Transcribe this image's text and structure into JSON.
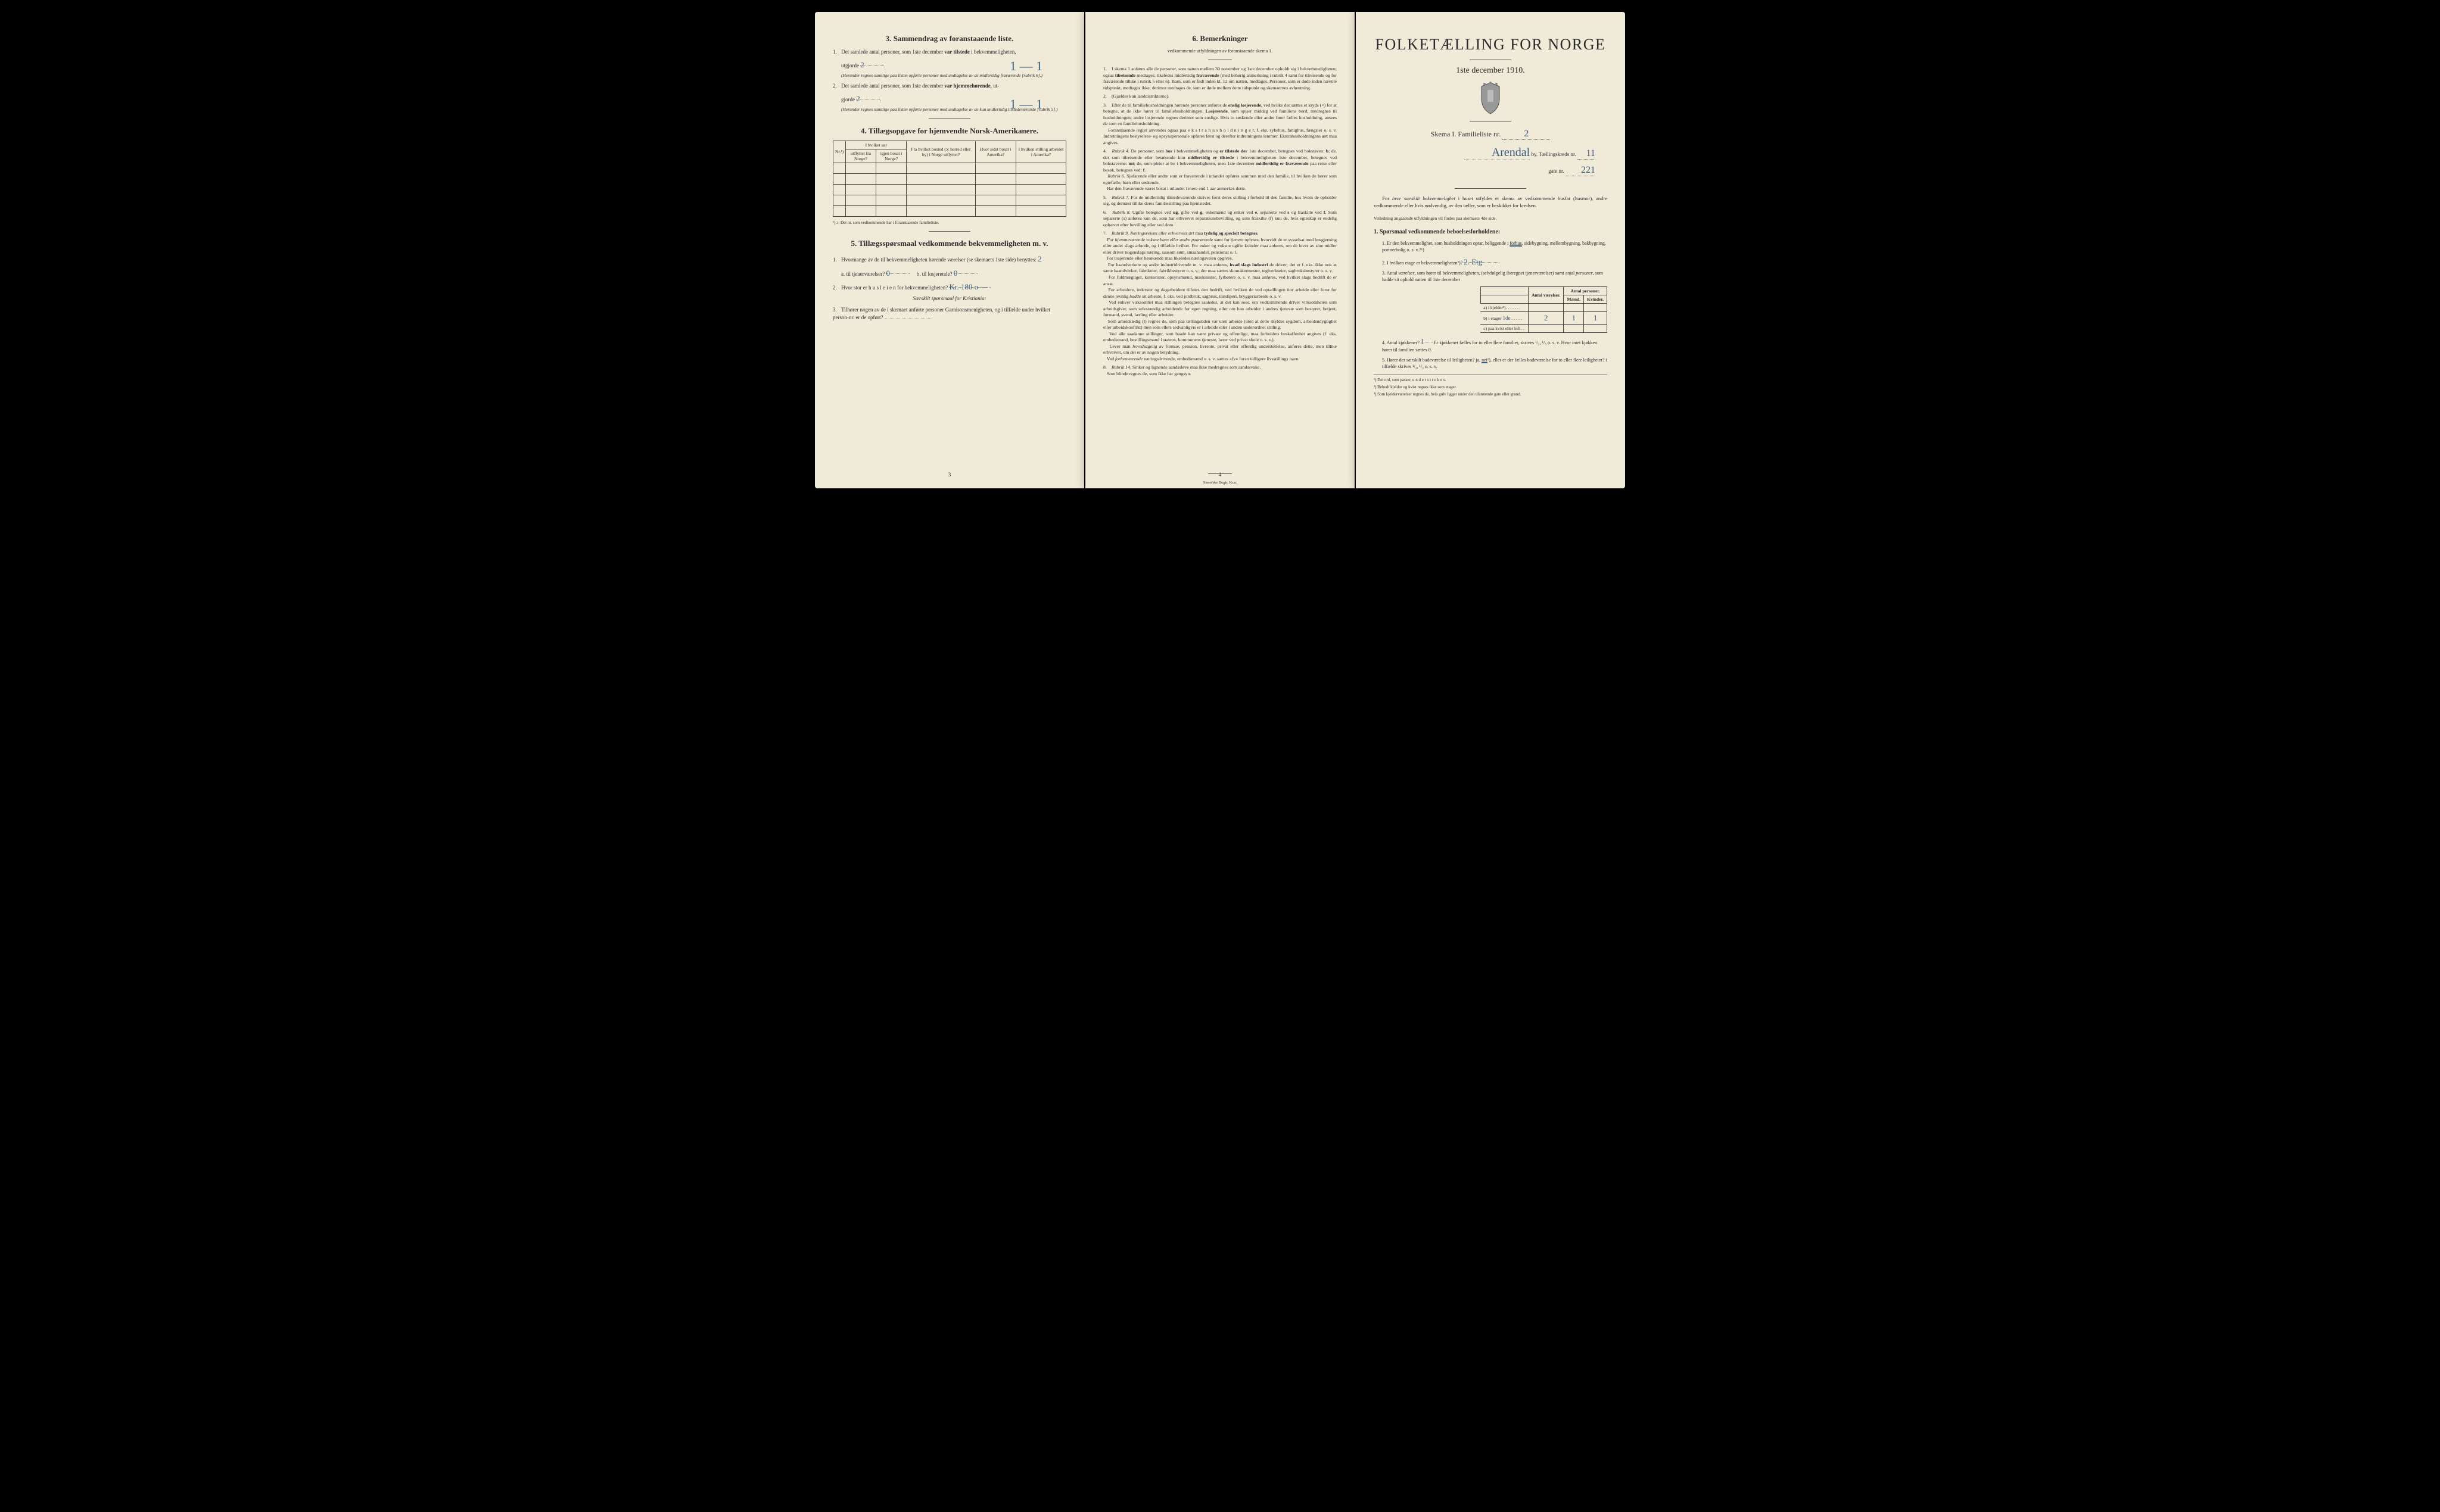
{
  "page_left": {
    "s3": {
      "title": "3.   Sammendrag av foranstaaende liste.",
      "q1_a": "Det samlede antal personer, som 1ste december",
      "q1_b": "var tilstede",
      "q1_c": "i bekvemmeligheten,",
      "q1_utgjorde": "utgjorde",
      "q1_val": "2",
      "q1_paren": "(Herunder regnes samtlige paa listen opførte personer med undtagelse av de midlertidig fraværende [rubrik 6].)",
      "q2_a": "Det samlede antal personer, som 1ste december",
      "q2_b": "var hjemmehørende",
      "q2_c": ", ut-",
      "q2_gjorde": "gjorde",
      "q2_val": "2",
      "q2_paren": "(Herunder regnes samtlige paa listen opførte personer med undtagelse av de kun midlertidig tilstedeværende [rubrik 5].)",
      "mark1": "1 — 1",
      "mark2": "1 — 1"
    },
    "s4": {
      "title": "4.   Tillægsopgave for hjemvendte Norsk-Amerikanere.",
      "headers": {
        "nr": "Nr.¹)",
        "aar": "I hvilket aar",
        "ut": "utflyttet fra Norge?",
        "igjen": "igjen bosat i Norge?",
        "fra": "Fra hvilket bosted (ɔ: herred eller by) i Norge utflyttet?",
        "hvor": "Hvor sidst bosat i Amerika?",
        "stilling": "I hvilken stilling arbeidet i Amerika?"
      },
      "fn": "¹) ɔ: Det nr. som vedkommende har i foranstaaende familieliste."
    },
    "s5": {
      "title": "5.   Tillægsspørsmaal vedkommende bekvemmeligheten m. v.",
      "q1": "Hvormange av de til bekvemmeligheten hørende værelser (se skemaets 1ste side) benyttes:",
      "q1_val": "2",
      "q1a": "a. til tjenerværelser?",
      "q1a_val": "0",
      "q1b": "b. til losjerende?",
      "q1b_val": "0",
      "q2": "Hvor stor er h u s l e i e n for bekvemmeligheten?",
      "q2_val": "Kr. 180 o —",
      "q2_sub": "Særskilt spørsmaal for Kristiania:",
      "q3": "Tilhører nogen av de i skemaet anførte personer Garnisonsmenigheten, og i tilfælde under hvilket person-nr. er de opført?"
    },
    "pagenum": "3"
  },
  "page_mid": {
    "title": "6.   Bemerkninger",
    "sub": "vedkommende utfyldningen av foranstaaende skema 1.",
    "items": [
      "I skema 1 anføres alle de personer, som natten mellem 30 november og 1ste december opholdt sig i bekvemmeligheten; ogsaa <strong>tilreisende</strong> medtages; likeledes midlertidig <strong>fraværende</strong> (med behørig anmerkning i rubrik 4 samt for tilreisende og for fraværende tillike i rubrik 5 eller 6). Barn, som er født inden kl. 12 om natten, medtages. Personer, som er døde inden nævnte tidspunkt, medtages ikke; derimot medtages de, som er døde mellem dette tidspunkt og skemaernes avhentning.",
      "(Gjælder kun landdistrikterne).",
      "Efter de til familiehusholdningen hørende personer anføres de <strong>enslig losjerende</strong>, ved hvilke der sættes et kryds (×) for at betegne, at de ikke hører til familiehusholdningen. <strong>Losjerende</strong>, som spiser middag ved familiens bord, medregnes til husholdningen; andre losjerende regnes derimot som enslige. Hvis to søskende eller andre fører fælles husholdning, ansees de som en familiehusholdning.<br>&nbsp;&nbsp;&nbsp;Foranstaaende regler anvendes ogsaa paa e k s t r a h u s h o l d n i n g e r, f. eks. sykehus, fattighus, fængsler o. s. v. Indretningens bestyrelses- og opsynspersonale opføres først og derefter indretningens lemmer. Ekstrahusholdningens <strong>art</strong> maa angives.",
      "<em>Rubrik 4.</em> De personer, som <strong>bor</strong> i bekvemmeligheten og <strong>er tilstede der</strong> 1ste december, betegnes ved bokstaven: <strong>b</strong>; de, der som tilreisende eller besøkende kun <strong>midlertidig er tilstede</strong> i bekvemmeligheten 1ste december, betegnes ved bokstaverne: <strong>mt</strong>; de, som pleier at bo i bekvemmeligheten, men 1ste december <strong>midlertidig er fraværende</strong> paa reise eller besøk, betegnes ved: <strong>f</strong>.<br>&nbsp;&nbsp;&nbsp;<em>Rubrik 6.</em> Sjøfarende eller andre som er fraværende i utlandet opføres sammen med den familie, til hvilken de hører som egtefælle, barn eller søskende.<br>&nbsp;&nbsp;&nbsp;Har den fraværende været bosat i utlandet i mere end 1 aar anmerkes dette.",
      "<em>Rubrik 7.</em> For de midlertidig tilstedeværende skrives først deres stilling i forhold til den familie, hos hvem de opholder sig, og dernæst tillike deres familiestilling paa hjemstedet.",
      "<em>Rubrik 8.</em> Ugifte betegnes ved <strong>ug</strong>, gifte ved <strong>g</strong>, enkemænd og enker ved <strong>e</strong>, separerte ved <strong>s</strong> og fraskilte ved <strong>f</strong>. Som separerte (s) anføres kun de, som har erhvervet separationsbevilling, og som fraskilte (f) kun de, hvis egteskap er endelig ophævet efter bevilling eller ved dom.",
      "<em>Rubrik 9. Næringsveiens eller erhvervets art</em> maa <strong>tydelig og specielt betegnes</strong>.<br>&nbsp;&nbsp;&nbsp;<em>For hjemmeværende voksne barn eller andre paarørende</em> samt for <em>tjenere</em> oplyses, hvorvidt de er sysselsat med husgjerning eller andet slags arbeide, og i tilfælde hvilket. For enker og voksne ugifte kvinder maa anføres, om de lever av sine midler eller driver nogenslags næring, saasom søm, smaahandel, pensionat o. l.<br>&nbsp;&nbsp;&nbsp;For losjerende eller besøkende maa likeledes næringsveien opgives.<br>&nbsp;&nbsp;&nbsp;For haandverkere og andre industridrivende m. v. maa anføres, <strong>hvad slags industri</strong> de driver; det er f. eks. ikke nok at sætte haandverker, fabrikeier, fabrikbestyrer o. s. v.; der maa sættes skomakermester, teglverkseier, sagbruksbestyrer o. s. v.<br>&nbsp;&nbsp;&nbsp;For fuldmægtiger, kontorister, opsynsmænd, maskinister, fyrbøtere o. s. v. maa anføres, ved hvilket slags bedrift de er ansat.<br>&nbsp;&nbsp;&nbsp;For arbeidere, inderster og dagarbeidere tilføies den bedrift, ved hvilken de ved optællingen <em>har</em> arbeide eller forut for denne jevnlig <em>hadde</em> sit arbeide, f. eks. ved jordbruk, sagbruk, træsliperi, bryggeriarbeide o. s. v.<br>&nbsp;&nbsp;&nbsp;Ved enhver virksomhet maa stillingen betegnes saaledes, at det kan sees, om vedkommende driver virksomheten som arbeidsgiver, som selvstændig arbeidende for egen regning, eller om han arbeider i andres tjeneste som bestyrer, betjent, formand, svend, lærling eller arbeider.<br>&nbsp;&nbsp;&nbsp;Som arbeidsledig (l) regnes de, som paa tællingstiden var uten arbeide (uten at dette skyldes sygdom, arbeidsudygtighet eller arbeidskonflikt) men som ellers sedvanligvis er i arbeide eller i anden underordnet stilling.<br>&nbsp;&nbsp;&nbsp;Ved alle saadanne stillinger, som baade kan være private og offentlige, maa forholdets beskaffenhet angives (f. eks. embedsmand, bestillingsmand i statens, kommunens tjeneste, lærer ved privat skole o. s. v.).<br>&nbsp;&nbsp;&nbsp;Lever man <em>hovedsagelig</em> av formue, pension, livrente, privat eller offentlig understøttelse, anføres dette, men tillike erhvervet, om det er av nogen betydning.<br>&nbsp;&nbsp;&nbsp;Ved <em>forhenværende</em> næringsdrivende, embedsmænd o. s. v. sættes «fv» foran tidligere livsstillings navn.",
      "<em>Rubrik 14.</em> Sinker og lignende aandssløve maa ikke medregnes som aandssvake.<br>&nbsp;&nbsp;&nbsp;Som blinde regnes de, som ikke har gangsyn."
    ],
    "pagenum": "4",
    "printer": "Steen'ske Bogtr.   Kr.a."
  },
  "page_right": {
    "title": "FOLKETÆLLING FOR NORGE",
    "date": "1ste december 1910.",
    "schema_a": "Skema I.   Familieliste nr.",
    "schema_val": "2",
    "by_val": "Arendal",
    "by_label": "by.  Tællingskreds nr.",
    "kreds_val": "11",
    "gate": "gate nr.",
    "gate_val": "221",
    "intro_a": "For",
    "intro_b": "hver særskilt bekvemmelighet",
    "intro_c": "i huset utfyldes et skema av vedkommende husfar (husmor), andre vedkommende eller hvis nødvendig, av den tæller, som er beskikket for kredsen.",
    "intro_sub": "Veiledning angaaende utfyldningen vil findes paa skemaets 4de side.",
    "s1": {
      "title": "1.  Spørsmaal vedkommende beboelsesforholdene:",
      "q1": "Er den bekvemmelighet, som husholdningen optar, beliggende i forhus, sidebygning, mellembygning, bakbygning, portnerbolig o. s. v.?¹)",
      "q2": "I hvilken etage er bekvemmeligheten²)?",
      "q2_val": "2. Etg",
      "q3": "Antal <em>værelser</em>, som hører til bekvemmeligheten, (selvfølgelig iberegnet tjenerværelser) samt antal <em>personer</em>, som hadde sit ophold natten til 1ste december",
      "table": {
        "h_vaer": "Antal værelser.",
        "h_pers": "Antal personer.",
        "h_m": "Mænd.",
        "h_k": "Kvinder.",
        "r_a": "a) i kjelder³)",
        "r_b": "b) i etager",
        "r_b_etg": "1de",
        "r_b_v": "2",
        "r_b_m": "1",
        "r_b_k": "1",
        "r_c": "c) paa kvist eller loft"
      },
      "q4": "Antal kjøkkener?",
      "q4_val": "1",
      "q4_rest": "Er kjøkkenet fælles for to eller flere familier, skrives ¹/₂, ¹/₃ o. s. v.   Hvor intet kjøkken hører til familien sættes 0.",
      "q5_a": "Hører der særskilt badeværelse til leiligheten?  ja,",
      "q5_nei": "nei",
      "q5_b": "¹), eller er der fælles badeværelse for to eller flere leiligheter?  i tilfælde skrives ¹/₂, ¹/₃ o. s. v."
    },
    "fn1": "¹) Det ord, som passer, u n d e r s t r e k e s.",
    "fn2": "²) Bebodt kjelder og kvist regnes ikke som etager.",
    "fn3": "³) Som kjelderværelser regnes de, hvis gulv ligger under den tilstøtende gate eller grund."
  }
}
